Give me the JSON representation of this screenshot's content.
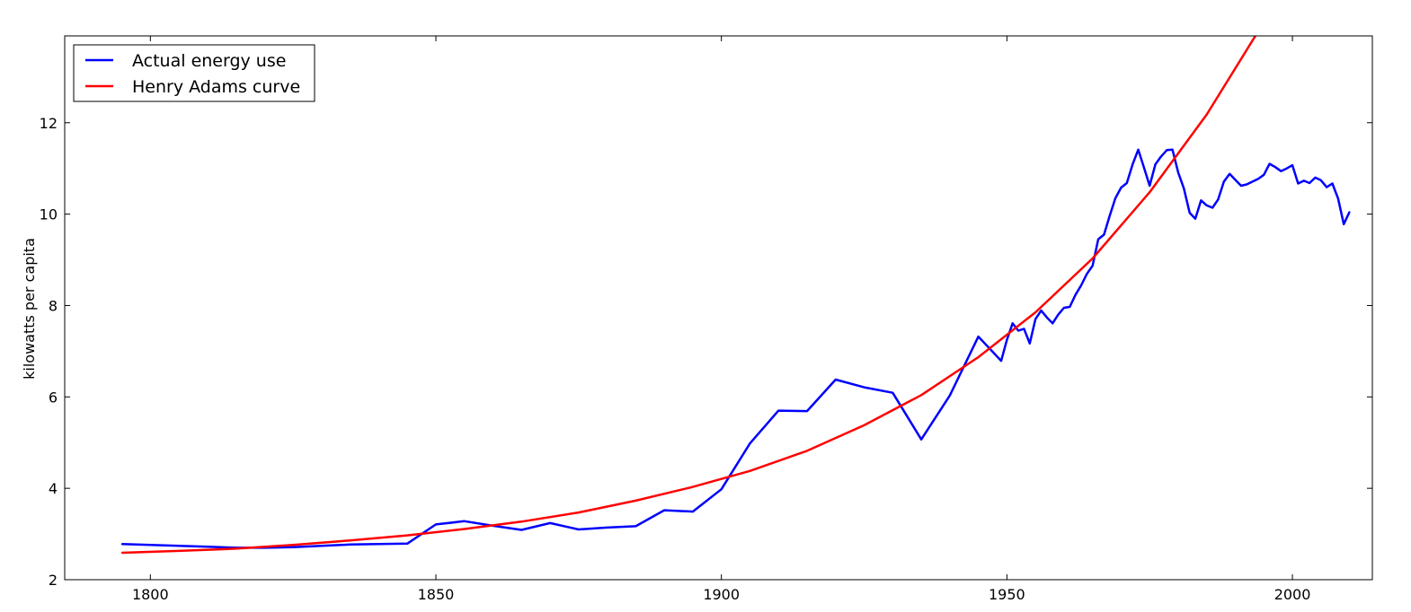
{
  "chart_data": {
    "type": "line",
    "title": "",
    "xlabel": "",
    "ylabel": "kilowatts per capita",
    "xlim": [
      1785,
      2014
    ],
    "ylim": [
      2,
      13.9
    ],
    "xticks": [
      1800,
      1850,
      1900,
      1950,
      2000
    ],
    "yticks": [
      2,
      4,
      6,
      8,
      10,
      12
    ],
    "grid": false,
    "legend_position": "upper left",
    "series": [
      {
        "name": "Actual energy use",
        "color": "#0000ff",
        "x": [
          1795,
          1800,
          1805,
          1810,
          1815,
          1820,
          1825,
          1830,
          1835,
          1840,
          1845,
          1850,
          1855,
          1860,
          1865,
          1870,
          1875,
          1880,
          1885,
          1890,
          1895,
          1900,
          1905,
          1910,
          1915,
          1920,
          1925,
          1930,
          1935,
          1940,
          1945,
          1949,
          1950,
          1951,
          1952,
          1953,
          1954,
          1955,
          1956,
          1957,
          1958,
          1959,
          1960,
          1961,
          1962,
          1963,
          1964,
          1965,
          1966,
          1967,
          1968,
          1969,
          1970,
          1971,
          1972,
          1973,
          1974,
          1975,
          1976,
          1977,
          1978,
          1979,
          1980,
          1981,
          1982,
          1983,
          1984,
          1985,
          1986,
          1987,
          1988,
          1989,
          1990,
          1991,
          1992,
          1993,
          1994,
          1995,
          1996,
          1997,
          1998,
          1999,
          2000,
          2001,
          2002,
          2003,
          2004,
          2005,
          2006,
          2007,
          2008,
          2009,
          2010
        ],
        "y": [
          2.78,
          2.76,
          2.74,
          2.72,
          2.7,
          2.7,
          2.71,
          2.74,
          2.77,
          2.78,
          2.79,
          3.21,
          3.28,
          3.18,
          3.09,
          3.24,
          3.1,
          3.14,
          3.17,
          3.52,
          3.49,
          3.98,
          4.98,
          5.7,
          5.69,
          6.38,
          6.21,
          6.09,
          5.07,
          6.03,
          7.32,
          6.79,
          7.25,
          7.61,
          7.45,
          7.49,
          7.17,
          7.7,
          7.89,
          7.74,
          7.61,
          7.8,
          7.95,
          7.97,
          8.23,
          8.44,
          8.69,
          8.87,
          9.45,
          9.55,
          9.96,
          10.35,
          10.58,
          10.68,
          11.08,
          11.41,
          11.02,
          10.62,
          11.09,
          11.26,
          11.4,
          11.41,
          10.91,
          10.56,
          10.03,
          9.9,
          10.3,
          10.19,
          10.14,
          10.32,
          10.71,
          10.88,
          10.75,
          10.62,
          10.65,
          10.71,
          10.77,
          10.86,
          11.1,
          11.03,
          10.94,
          11.0,
          11.07,
          10.67,
          10.73,
          10.68,
          10.8,
          10.74,
          10.59,
          10.67,
          10.34,
          9.78,
          10.05
        ]
      },
      {
        "name": "Henry Adams curve",
        "color": "#ff0000",
        "x": [
          1795,
          1805,
          1815,
          1825,
          1835,
          1845,
          1855,
          1865,
          1875,
          1885,
          1895,
          1905,
          1915,
          1925,
          1935,
          1945,
          1955,
          1965,
          1975,
          1985,
          1995
        ],
        "y": [
          2.59,
          2.63,
          2.68,
          2.76,
          2.86,
          2.97,
          3.11,
          3.27,
          3.47,
          3.73,
          4.03,
          4.38,
          4.82,
          5.38,
          6.04,
          6.87,
          7.85,
          9.03,
          10.48,
          12.18,
          14.2
        ]
      }
    ]
  }
}
